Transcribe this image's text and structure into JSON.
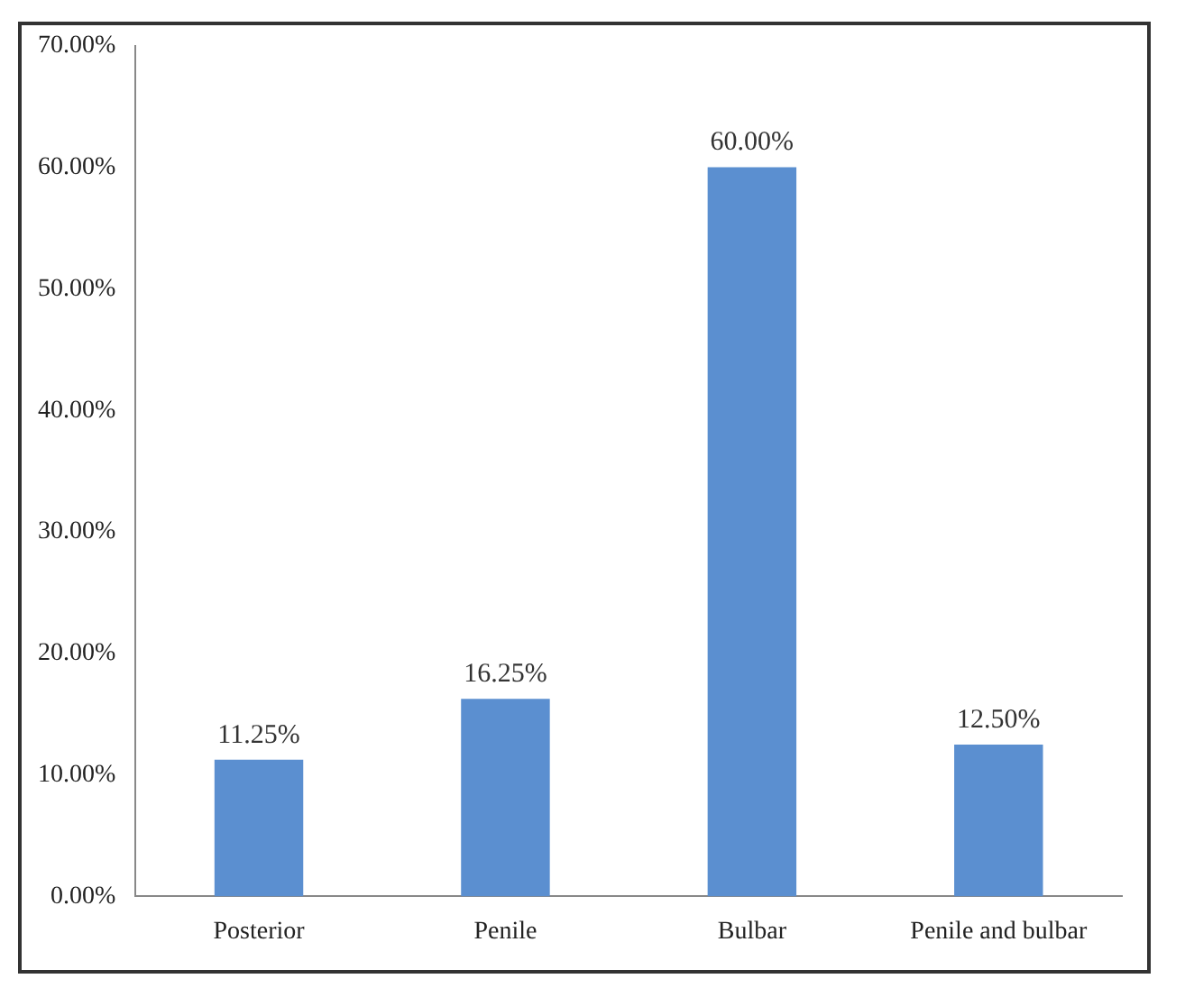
{
  "chart_data": {
    "type": "bar",
    "categories": [
      "Posterior",
      "Penile",
      "Bulbar",
      "Penile and bulbar"
    ],
    "values": [
      11.25,
      16.25,
      60.0,
      12.5
    ],
    "color": "#5b8fd0",
    "value_labels": [
      "11.25%",
      "16.25%",
      "60.00%",
      "12.50%"
    ],
    "ylim": [
      0,
      70
    ],
    "yticks": [
      {
        "value": 0,
        "label": "0.00%"
      },
      {
        "value": 10,
        "label": "10.00%"
      },
      {
        "value": 20,
        "label": "20.00%"
      },
      {
        "value": 30,
        "label": "30.00%"
      },
      {
        "value": 40,
        "label": "40.00%"
      },
      {
        "value": 50,
        "label": "50.00%"
      },
      {
        "value": 60,
        "label": "60.00%"
      },
      {
        "value": 70,
        "label": "70.00%"
      }
    ],
    "grid": false,
    "legend": false
  }
}
